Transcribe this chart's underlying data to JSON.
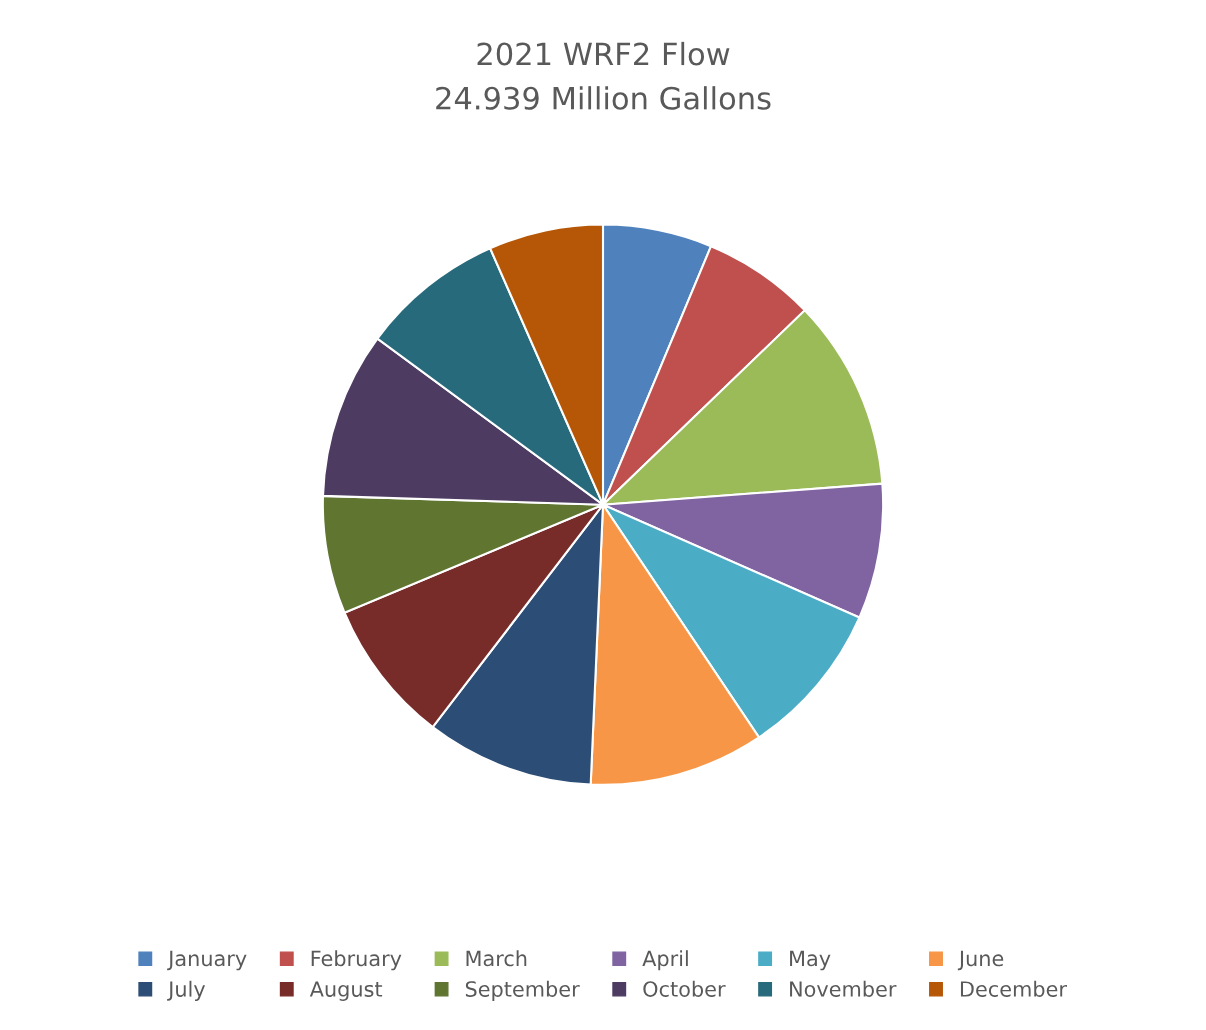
{
  "chart_data": {
    "type": "pie",
    "title": "2021 WRF2 Flow",
    "subtitle": "24.939 Million Gallons",
    "categories": [
      "January",
      "February",
      "March",
      "April",
      "May",
      "June",
      "July",
      "August",
      "September",
      "October",
      "November",
      "December"
    ],
    "values": [
      6.3,
      6.5,
      11.0,
      7.8,
      9.0,
      10.1,
      9.7,
      8.3,
      6.8,
      9.6,
      8.3,
      6.6
    ],
    "colors": [
      "#4f81bd",
      "#c0504d",
      "#9bbb59",
      "#8064a2",
      "#4bacc6",
      "#f79646",
      "#2c4d75",
      "#772c2a",
      "#5f7530",
      "#4d3b62",
      "#276a7c",
      "#b65708"
    ],
    "legend": "bottom"
  }
}
